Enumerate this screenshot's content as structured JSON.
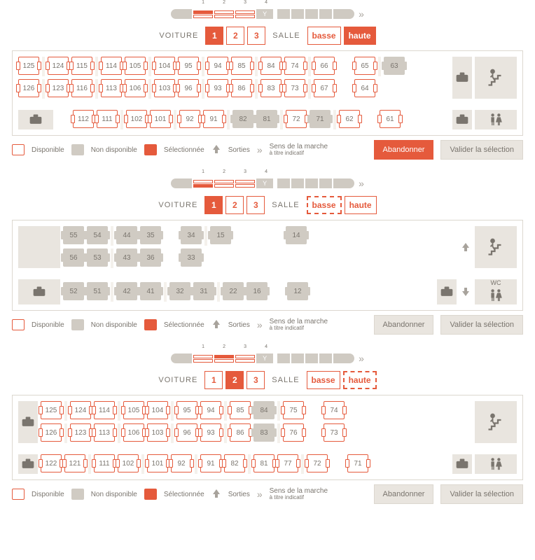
{
  "colors": {
    "accent": "#e55a3c",
    "grey_bg": "#e9e5df",
    "grey": "#a8a39c",
    "border": "#dcd7cf"
  },
  "labels": {
    "voiture": "VOITURE",
    "salle": "SALLE",
    "basse": "basse",
    "haute": "haute",
    "disponible": "Disponible",
    "non_disponible": "Non disponible",
    "selectionnee": "Sélectionnée",
    "sorties": "Sorties",
    "sens": "Sens de la marche",
    "sens_sub": "à titre indicatif",
    "abandonner": "Abandonner",
    "valider": "Valider la sélection"
  },
  "overview": {
    "cars": [
      "1",
      "2",
      "3"
    ],
    "bar": "4",
    "trailing_units": 4
  },
  "panels": [
    {
      "id": "p1",
      "voiture_active": "1",
      "salle_active": "haute",
      "salle_dashed": null,
      "overview_selected": {
        "car": 1,
        "half": "top"
      },
      "abandon_primary": true,
      "rows_top": [
        {
          "cells": [
            {
              "n": "125"
            },
            {
              "gap": true
            },
            {
              "n": "124"
            },
            {
              "n": "115"
            },
            {
              "gap": true
            },
            {
              "n": "114"
            },
            {
              "n": "105"
            },
            {
              "gap": true
            },
            {
              "n": "104"
            },
            {
              "n": "95"
            },
            {
              "gap": true
            },
            {
              "n": "94"
            },
            {
              "n": "85"
            },
            {
              "gap": true
            },
            {
              "n": "84"
            },
            {
              "n": "74"
            },
            {
              "gap": true
            },
            {
              "n": "66"
            },
            {
              "wide": true
            },
            {
              "n": "65"
            },
            {
              "gap": true
            },
            {
              "n": "63",
              "na": true
            }
          ]
        },
        {
          "cells": [
            {
              "n": "126"
            },
            {
              "gap": true
            },
            {
              "n": "123"
            },
            {
              "n": "116"
            },
            {
              "gap": true
            },
            {
              "n": "113"
            },
            {
              "n": "106"
            },
            {
              "gap": true
            },
            {
              "n": "103"
            },
            {
              "n": "96"
            },
            {
              "gap": true
            },
            {
              "n": "93"
            },
            {
              "n": "86"
            },
            {
              "gap": true
            },
            {
              "n": "83"
            },
            {
              "n": "73"
            },
            {
              "gap": true
            },
            {
              "n": "67"
            },
            {
              "wide": true
            },
            {
              "n": "64"
            }
          ]
        }
      ],
      "rows_bottom": [
        {
          "cells": [
            {
              "n": "112"
            },
            {
              "n": "111"
            },
            {
              "gap": true
            },
            {
              "n": "102"
            },
            {
              "n": "101"
            },
            {
              "gap": true
            },
            {
              "n": "92"
            },
            {
              "n": "91"
            },
            {
              "gap": true
            },
            {
              "n": "82",
              "na": true
            },
            {
              "n": "81",
              "na": true
            },
            {
              "gap": true
            },
            {
              "n": "72"
            },
            {
              "n": "71",
              "na": true
            },
            {
              "gap": true
            },
            {
              "n": "62"
            },
            {
              "wide": true
            },
            {
              "n": "61"
            }
          ]
        }
      ]
    },
    {
      "id": "p2",
      "voiture_active": "1",
      "salle_active": "basse",
      "salle_dashed": "basse",
      "overview_selected": {
        "car": 1,
        "half": "bottom"
      },
      "abandon_primary": false,
      "rows_top": [
        {
          "cells": [
            {
              "n": "55",
              "na": true
            },
            {
              "n": "54",
              "na": true
            },
            {
              "gap": true
            },
            {
              "n": "44",
              "na": true
            },
            {
              "n": "35",
              "na": true
            },
            {
              "wide": true
            },
            {
              "n": "34",
              "na": true
            },
            {
              "gap": true
            },
            {
              "n": "15",
              "na": true
            },
            {
              "wider": true
            },
            {
              "n": "14",
              "na": true
            }
          ]
        },
        {
          "cells": [
            {
              "n": "56",
              "na": true
            },
            {
              "n": "53",
              "na": true
            },
            {
              "gap": true
            },
            {
              "n": "43",
              "na": true
            },
            {
              "n": "36",
              "na": true
            },
            {
              "wide": true
            },
            {
              "n": "33",
              "na": true
            }
          ]
        }
      ],
      "rows_bottom": [
        {
          "cells": [
            {
              "n": "52",
              "na": true
            },
            {
              "n": "51",
              "na": true
            },
            {
              "gap": true
            },
            {
              "n": "42",
              "na": true
            },
            {
              "n": "41",
              "na": true
            },
            {
              "gap": true
            },
            {
              "n": "32",
              "na": true
            },
            {
              "n": "31",
              "na": true
            },
            {
              "gap": true
            },
            {
              "n": "22",
              "na": true
            },
            {
              "n": "16",
              "na": true
            },
            {
              "wide": true
            },
            {
              "n": "12",
              "na": true
            }
          ]
        }
      ]
    },
    {
      "id": "p3",
      "voiture_active": "2",
      "salle_active": "haute",
      "salle_dashed": "haute",
      "overview_selected": {
        "car": 2,
        "half": "top"
      },
      "abandon_primary": false,
      "rows_top": [
        {
          "cells": [
            {
              "n": "125"
            },
            {
              "gap": true
            },
            {
              "n": "124"
            },
            {
              "n": "114"
            },
            {
              "gap": true
            },
            {
              "n": "105"
            },
            {
              "n": "104"
            },
            {
              "gap": true
            },
            {
              "n": "95"
            },
            {
              "n": "94"
            },
            {
              "gap": true
            },
            {
              "n": "85"
            },
            {
              "n": "84",
              "na": true
            },
            {
              "gap": true
            },
            {
              "n": "75"
            },
            {
              "wide": true
            },
            {
              "n": "74"
            }
          ]
        },
        {
          "cells": [
            {
              "n": "126"
            },
            {
              "gap": true
            },
            {
              "n": "123"
            },
            {
              "n": "113"
            },
            {
              "gap": true
            },
            {
              "n": "106"
            },
            {
              "n": "103"
            },
            {
              "gap": true
            },
            {
              "n": "96"
            },
            {
              "n": "93"
            },
            {
              "gap": true
            },
            {
              "n": "86"
            },
            {
              "n": "83",
              "na": true
            },
            {
              "gap": true
            },
            {
              "n": "76"
            },
            {
              "wide": true
            },
            {
              "n": "73"
            }
          ]
        }
      ],
      "rows_bottom": [
        {
          "cells": [
            {
              "n": "122"
            },
            {
              "n": "121"
            },
            {
              "gap": true
            },
            {
              "n": "111"
            },
            {
              "n": "102"
            },
            {
              "gap": true
            },
            {
              "n": "101"
            },
            {
              "n": "92"
            },
            {
              "gap": true
            },
            {
              "n": "91"
            },
            {
              "n": "82"
            },
            {
              "gap": true
            },
            {
              "n": "81"
            },
            {
              "n": "77"
            },
            {
              "gap": true
            },
            {
              "n": "72"
            },
            {
              "wide": true
            },
            {
              "n": "71"
            }
          ]
        }
      ]
    }
  ]
}
